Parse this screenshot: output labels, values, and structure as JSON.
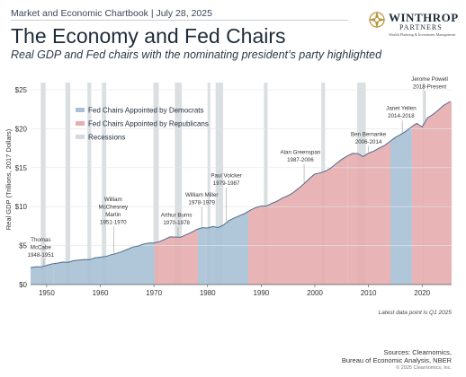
{
  "header": {
    "line": "Market and Economic Chartbook | July 28, 2025"
  },
  "title": "The Economy and Fed Chairs",
  "subtitle": "Real GDP and Fed chairs with the nominating president’s party highlighted",
  "logo": {
    "name": "WINTHROP",
    "sub": "PARTNERS",
    "tag": "Wealth Planning & Investment Management"
  },
  "footnote": "Latest data point is Q1 2025",
  "sources": {
    "line1": "Sources: Clearnomics,",
    "line2": "Bureau of Economic Analysis, NBER"
  },
  "copyright": "© 2025 Clearnomics, Inc.",
  "colors": {
    "democrat": "#a9c1d6",
    "republican": "#e6aeb0",
    "recession": "#d4d9dd",
    "line": "#4d6c8a"
  },
  "chart_data": {
    "type": "area",
    "ylabel": "Real GDP (Trillions, 2017 Dollars)",
    "xlim": [
      1947,
      2025.5
    ],
    "ylim": [
      0,
      25
    ],
    "yticks": [
      "$0",
      "$5",
      "$10",
      "$15",
      "$20",
      "$25"
    ],
    "yticks_values": [
      0,
      5,
      10,
      15,
      20,
      25
    ],
    "xticks": [
      1950,
      1960,
      1970,
      1980,
      1990,
      2000,
      2010,
      2020
    ],
    "legend": [
      {
        "label": "Fed Chairs Appointed by Democrats",
        "party": "democrat"
      },
      {
        "label": "Fed Chairs Appointed by Republicans",
        "party": "republican"
      },
      {
        "label": "Recessions",
        "party": "recession"
      }
    ],
    "legend_position": "top-left",
    "series": [
      {
        "x": [
          1947,
          1948,
          1949,
          1950,
          1951,
          1952,
          1953,
          1954,
          1955,
          1956,
          1957,
          1958,
          1959,
          1960,
          1961,
          1962,
          1963,
          1964,
          1965,
          1966,
          1967,
          1968,
          1969,
          1970,
          1971,
          1972,
          1973,
          1974,
          1975,
          1976,
          1977,
          1978,
          1979,
          1980,
          1981,
          1982,
          1983,
          1984,
          1985,
          1986,
          1987,
          1988,
          1989,
          1990,
          1991,
          1992,
          1993,
          1994,
          1995,
          1996,
          1997,
          1998,
          1999,
          2000,
          2001,
          2002,
          2003,
          2004,
          2005,
          2006,
          2007,
          2008,
          2009,
          2010,
          2011,
          2012,
          2013,
          2014,
          2015,
          2016,
          2017,
          2018,
          2019,
          2020,
          2021,
          2022,
          2023,
          2024,
          2025.25
        ],
        "values": [
          2.18,
          2.28,
          2.27,
          2.46,
          2.65,
          2.75,
          2.88,
          2.86,
          3.07,
          3.14,
          3.21,
          3.19,
          3.42,
          3.51,
          3.6,
          3.83,
          4.0,
          4.23,
          4.5,
          4.8,
          4.93,
          5.17,
          5.33,
          5.33,
          5.51,
          5.8,
          6.12,
          6.09,
          6.07,
          6.4,
          6.71,
          7.08,
          7.3,
          7.26,
          7.44,
          7.31,
          7.65,
          8.21,
          8.55,
          8.85,
          9.15,
          9.55,
          9.89,
          10.08,
          10.07,
          10.44,
          10.72,
          11.13,
          11.4,
          11.82,
          12.36,
          12.96,
          13.62,
          14.18,
          14.32,
          14.56,
          14.97,
          15.54,
          16.06,
          16.49,
          16.83,
          16.81,
          16.43,
          16.87,
          17.13,
          17.51,
          17.86,
          18.36,
          18.88,
          19.26,
          19.69,
          20.23,
          20.69,
          20.23,
          21.41,
          21.82,
          22.38,
          23.0,
          23.5
        ]
      }
    ],
    "chairs": [
      {
        "name": "Thomas McCabe",
        "years": "1948-1951",
        "start": 1947,
        "end": 1951.25,
        "party": "democrat"
      },
      {
        "name": "William McChesney Martin",
        "years": "1951-1970",
        "start": 1951.25,
        "end": 1970.1,
        "party": "democrat"
      },
      {
        "name": "Arthur Burns",
        "years": "1970-1978",
        "start": 1970.1,
        "end": 1978.2,
        "party": "republican"
      },
      {
        "name": "William Miller",
        "years": "1978-1979",
        "start": 1978.2,
        "end": 1979.6,
        "party": "democrat"
      },
      {
        "name": "Paul Volcker",
        "years": "1979-1987",
        "start": 1979.6,
        "end": 1987.6,
        "party": "democrat"
      },
      {
        "name": "Alan Greenspan",
        "years": "1987-2006",
        "start": 1987.6,
        "end": 2006.1,
        "party": "republican"
      },
      {
        "name": "Ben Bernanke",
        "years": "2006-2014",
        "start": 2006.1,
        "end": 2014.1,
        "party": "republican"
      },
      {
        "name": "Janet Yellen",
        "years": "2014-2018",
        "start": 2014.1,
        "end": 2018.1,
        "party": "democrat"
      },
      {
        "name": "Jerome Powell",
        "years": "2018-Present",
        "start": 2018.1,
        "end": 2025.5,
        "party": "republican"
      }
    ],
    "recessions": [
      [
        1948.9,
        1949.8
      ],
      [
        1953.5,
        1954.4
      ],
      [
        1957.6,
        1958.3
      ],
      [
        1960.3,
        1961.1
      ],
      [
        1969.9,
        1970.9
      ],
      [
        1973.9,
        1975.2
      ],
      [
        1980.0,
        1980.5
      ],
      [
        1981.5,
        1982.9
      ],
      [
        1990.5,
        1991.2
      ],
      [
        2001.2,
        2001.9
      ],
      [
        2007.9,
        2009.5
      ],
      [
        2020.1,
        2020.4
      ]
    ]
  }
}
